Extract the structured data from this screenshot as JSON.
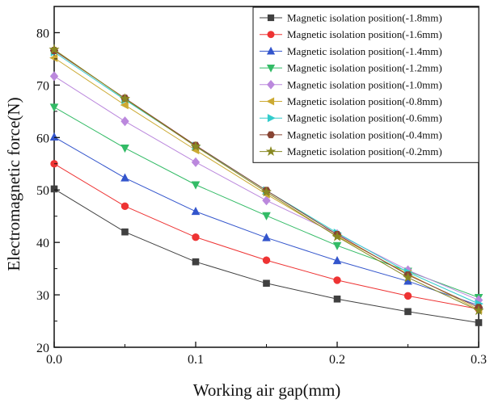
{
  "chart_data": {
    "type": "line",
    "xlabel": "Working air gap(mm)",
    "ylabel": "Electromagnetic force(N)",
    "xlim": [
      0.0,
      0.3
    ],
    "ylim": [
      20,
      85
    ],
    "xticks": [
      0.0,
      0.1,
      0.2,
      0.3
    ],
    "xtick_labels": [
      "0.0",
      "0.1",
      "0.2",
      "0.3"
    ],
    "yticks": [
      20,
      30,
      40,
      50,
      60,
      70,
      80
    ],
    "ytick_labels": [
      "20",
      "30",
      "40",
      "50",
      "60",
      "70",
      "80"
    ],
    "grid": false,
    "legend_position": "top-right",
    "x": [
      0.0,
      0.05,
      0.1,
      0.15,
      0.2,
      0.25,
      0.3
    ],
    "series": [
      {
        "name": "Magnetic isolation position(-1.8mm)",
        "color": "#404040",
        "marker": "square",
        "values": [
          50.2,
          42.0,
          36.3,
          32.2,
          29.2,
          26.8,
          24.7
        ]
      },
      {
        "name": "Magnetic isolation position(-1.6mm)",
        "color": "#ee3333",
        "marker": "circle",
        "values": [
          55.0,
          46.9,
          41.0,
          36.6,
          32.8,
          29.8,
          27.3
        ]
      },
      {
        "name": "Magnetic isolation position(-1.4mm)",
        "color": "#3355cc",
        "marker": "triangle-up",
        "values": [
          60.1,
          52.3,
          45.9,
          40.9,
          36.5,
          32.6,
          28.0
        ]
      },
      {
        "name": "Magnetic isolation position(-1.2mm)",
        "color": "#33bb66",
        "marker": "triangle-down",
        "values": [
          65.8,
          58.0,
          51.0,
          45.1,
          39.4,
          34.5,
          29.5
        ]
      },
      {
        "name": "Magnetic isolation position(-1.0mm)",
        "color": "#bb88dd",
        "marker": "diamond",
        "values": [
          71.7,
          63.1,
          55.3,
          48.0,
          41.6,
          34.7,
          29.0
        ]
      },
      {
        "name": "Magnetic isolation position(-0.8mm)",
        "color": "#ccaa33",
        "marker": "triangle-left",
        "values": [
          75.2,
          66.2,
          57.6,
          49.2,
          41.2,
          34.0,
          27.2
        ]
      },
      {
        "name": "Magnetic isolation position(-0.6mm)",
        "color": "#33cccc",
        "marker": "triangle-right",
        "values": [
          76.3,
          67.2,
          58.4,
          49.9,
          41.8,
          34.3,
          28.3
        ]
      },
      {
        "name": "Magnetic isolation position(-0.4mm)",
        "color": "#884433",
        "marker": "hexagon",
        "values": [
          76.6,
          67.5,
          58.5,
          49.9,
          41.5,
          33.8,
          27.6
        ]
      },
      {
        "name": "Magnetic isolation position(-0.2mm)",
        "color": "#888822",
        "marker": "star",
        "values": [
          76.8,
          67.4,
          58.3,
          49.6,
          41.1,
          33.3,
          27.0
        ]
      }
    ]
  }
}
